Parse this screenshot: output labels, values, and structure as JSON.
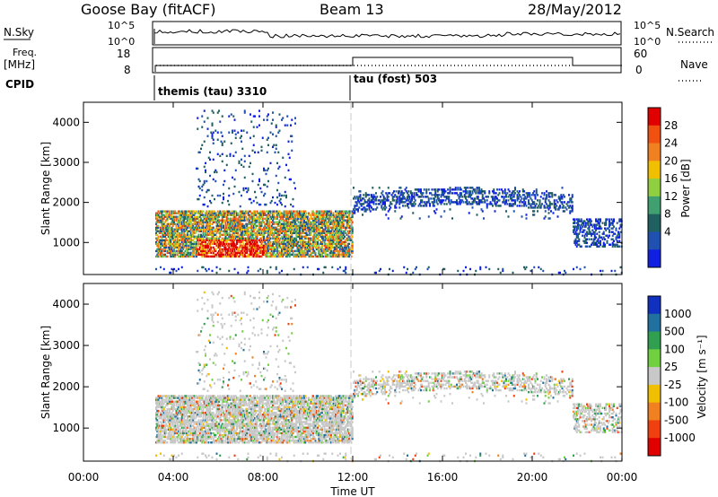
{
  "header": {
    "station": "Goose Bay (fitACF)",
    "beam": "Beam 13",
    "date": "28/May/2012"
  },
  "noise_panel": {
    "left_label": "N.Sky",
    "left_ticks": [
      "10^5",
      "10^0"
    ],
    "right_label": "N.Search",
    "right_ticks": [
      "10^5",
      "10^0"
    ]
  },
  "freq_panel": {
    "left_label_1": "Freq.",
    "left_label_2": "[MHz]",
    "left_ticks": [
      "18",
      "8"
    ],
    "right_label": "Nave",
    "right_ticks": [
      "60",
      "0"
    ]
  },
  "cpid": {
    "label": "CPID",
    "segments": [
      {
        "name": "themis (tau) 3310",
        "start_hour": 3.2
      },
      {
        "name": "tau (fost) 503",
        "start_hour": 12.0
      }
    ]
  },
  "chart_data": {
    "type": "heatmap",
    "xlabel": "Time UT",
    "xlim_hours": [
      0,
      24
    ],
    "x_tick_labels": [
      "00:00",
      "04:00",
      "08:00",
      "12:00",
      "16:00",
      "20:00",
      "00:00"
    ],
    "ylabel": "Slant Range [km]",
    "ylim_km": [
      200,
      4500
    ],
    "y_tick_labels": [
      "1000",
      "2000",
      "3000",
      "4000"
    ],
    "power": {
      "colorbar_label": "Power [dB]",
      "ticks": [
        "28",
        "24",
        "20",
        "16",
        "12",
        "8",
        "4"
      ],
      "colors": [
        "#e00000",
        "#f05010",
        "#f08020",
        "#f0c000",
        "#90d040",
        "#40a070",
        "#206060",
        "#2050b0",
        "#1020e0"
      ]
    },
    "velocity": {
      "colorbar_label": "Velocity [m s⁻¹]",
      "ticks": [
        "1000",
        "500",
        "100",
        "25",
        "-25",
        "-100",
        "-500",
        "-1000"
      ],
      "colors": [
        "#1030c0",
        "#2070a0",
        "#30a050",
        "#70d040",
        "#c8c8c8",
        "#f0c000",
        "#f08020",
        "#f04010",
        "#e00000"
      ]
    },
    "scatter_regions": [
      {
        "t0": 3.2,
        "t1": 12.0,
        "r0": 650,
        "r1": 1800,
        "density": "high",
        "dominant_power": "mixed"
      },
      {
        "t0": 5.0,
        "t1": 9.5,
        "r0": 1900,
        "r1": 4300,
        "density": "sparse",
        "dominant_power": "low"
      },
      {
        "t0": 12.0,
        "t1": 21.8,
        "r0": 1600,
        "r1": 2400,
        "density": "medium",
        "dominant_power": "low"
      },
      {
        "t0": 21.8,
        "t1": 24.0,
        "r0": 900,
        "r1": 1600,
        "density": "medium",
        "dominant_power": "low"
      },
      {
        "t0": 3.2,
        "t1": 24.0,
        "r0": 200,
        "r1": 400,
        "density": "sparse",
        "dominant_power": "low"
      }
    ]
  }
}
